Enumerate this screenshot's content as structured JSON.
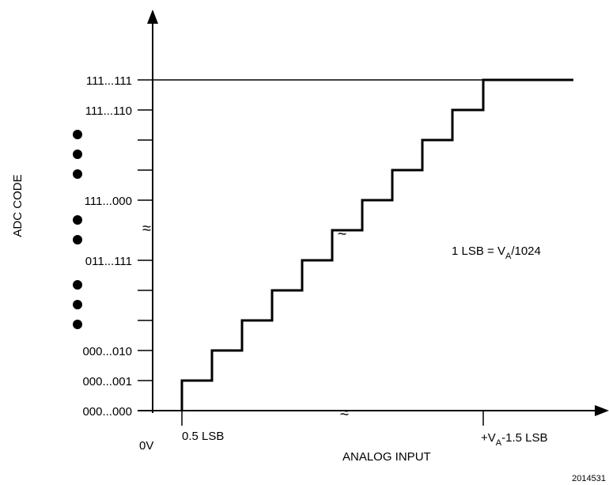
{
  "diagram": {
    "y_axis_title": "ADC CODE",
    "x_axis_title": "ANALOG INPUT",
    "y_codes": {
      "top": "111...111",
      "second": "111...110",
      "mid_upper": "111...000",
      "mid_lower": "011...111",
      "code_010": "000...010",
      "code_001": "000...001",
      "code_000": "000...000"
    },
    "x_labels": {
      "origin": "0V",
      "first": "0.5 LSB",
      "last_prefix": "+V",
      "last_sub": "A",
      "last_suffix": "-1.5 LSB"
    },
    "lsb_note": {
      "prefix": "1 LSB = V",
      "sub": "A",
      "suffix": "/1024"
    },
    "figure_id": "2014531",
    "break_symbol": "≈",
    "colors": {
      "ink": "#000000",
      "background": "#ffffff"
    }
  }
}
